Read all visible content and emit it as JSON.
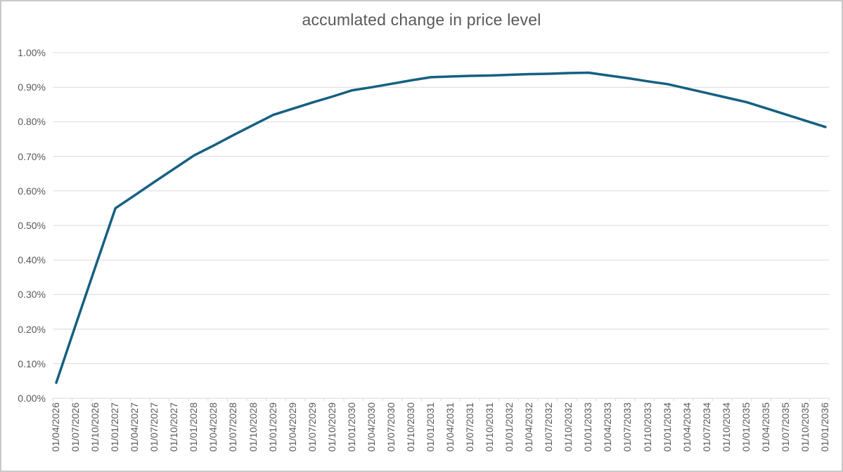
{
  "title": "accumlated change in price level",
  "colors": {
    "line": "#156082",
    "grid": "#d9d9d9",
    "axis": "#d9d9d9",
    "text": "#595959",
    "border": "#c9c9c9",
    "background": "#ffffff"
  },
  "chart_data": {
    "type": "line",
    "title": "accumlated change in price level",
    "xlabel": "",
    "ylabel": "",
    "grid": "horizontal",
    "legend": "none",
    "ylim": [
      0,
      1.0
    ],
    "y_unit": "percent",
    "y_tick_values": [
      0,
      0.1,
      0.2,
      0.3,
      0.4,
      0.5,
      0.6,
      0.7,
      0.8,
      0.9,
      1.0
    ],
    "y_tick_labels": [
      "0.00%",
      "0.10%",
      "0.20%",
      "0.30%",
      "0.40%",
      "0.50%",
      "0.60%",
      "0.70%",
      "0.80%",
      "0.90%",
      "1.00%"
    ],
    "x": [
      "01/04/2026",
      "01/07/2026",
      "01/10/2026",
      "01/01/2027",
      "01/04/2027",
      "01/07/2027",
      "01/10/2027",
      "01/01/2028",
      "01/04/2028",
      "01/07/2028",
      "01/10/2028",
      "01/01/2029",
      "01/04/2029",
      "01/07/2029",
      "01/10/2029",
      "01/01/2030",
      "01/04/2030",
      "01/07/2030",
      "01/10/2030",
      "01/01/2031",
      "01/04/2031",
      "01/07/2031",
      "01/10/2031",
      "01/01/2032",
      "01/04/2032",
      "01/07/2032",
      "01/10/2032",
      "01/01/2033",
      "01/04/2033",
      "01/07/2033",
      "01/10/2033",
      "01/01/2034",
      "01/04/2034",
      "01/07/2034",
      "01/10/2034",
      "01/01/2035",
      "01/04/2035",
      "01/07/2035",
      "01/10/2035",
      "01/01/2036"
    ],
    "values": [
      0.045,
      0.215,
      0.383,
      0.55,
      0.588,
      0.627,
      0.665,
      0.703,
      0.732,
      0.762,
      0.791,
      0.82,
      0.838,
      0.856,
      0.873,
      0.891,
      0.9,
      0.91,
      0.92,
      0.929,
      0.931,
      0.933,
      0.934,
      0.936,
      0.938,
      0.939,
      0.941,
      0.942,
      0.934,
      0.926,
      0.917,
      0.909,
      0.896,
      0.883,
      0.87,
      0.857,
      0.839,
      0.821,
      0.803,
      0.785
    ]
  }
}
